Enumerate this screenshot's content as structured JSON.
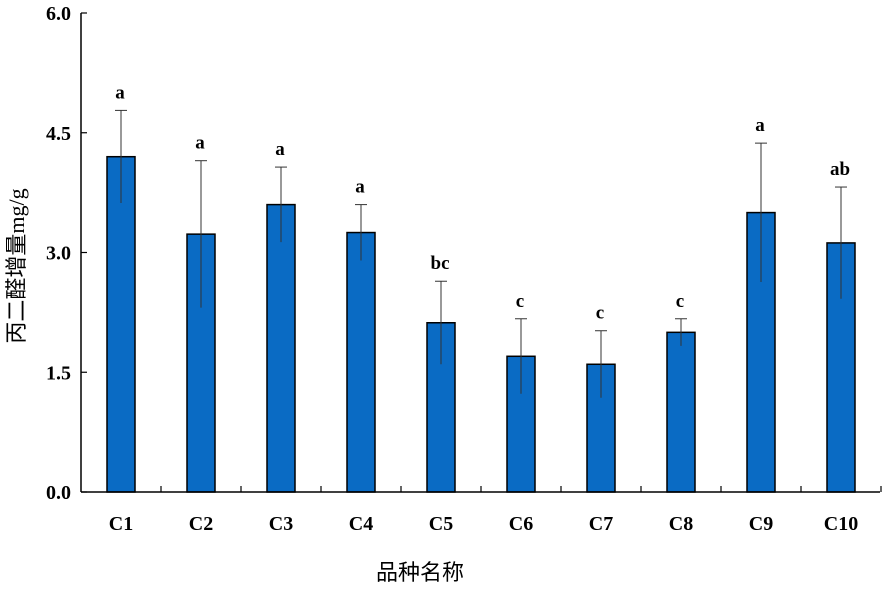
{
  "chart_data": {
    "type": "bar",
    "xlabel": "品种名称",
    "ylabel": "丙二醛增量mg/g",
    "ylim": [
      0,
      6.0
    ],
    "yticks": [
      "0.0",
      "1.5",
      "3.0",
      "4.5",
      "6.0"
    ],
    "categories": [
      "C1",
      "C2",
      "C3",
      "C4",
      "C5",
      "C6",
      "C7",
      "C8",
      "C9",
      "C10"
    ],
    "values": [
      4.2,
      3.23,
      3.6,
      3.25,
      2.12,
      1.7,
      1.6,
      2.0,
      3.5,
      3.12
    ],
    "errors": [
      0.58,
      0.92,
      0.47,
      0.35,
      0.52,
      0.47,
      0.42,
      0.17,
      0.87,
      0.7
    ],
    "significance": [
      "a",
      "a",
      "a",
      "a",
      "bc",
      "c",
      "c",
      "c",
      "a",
      "ab"
    ],
    "bar_color": "#0a6bc4",
    "bar_edge_color": "#000000",
    "grid": false
  }
}
